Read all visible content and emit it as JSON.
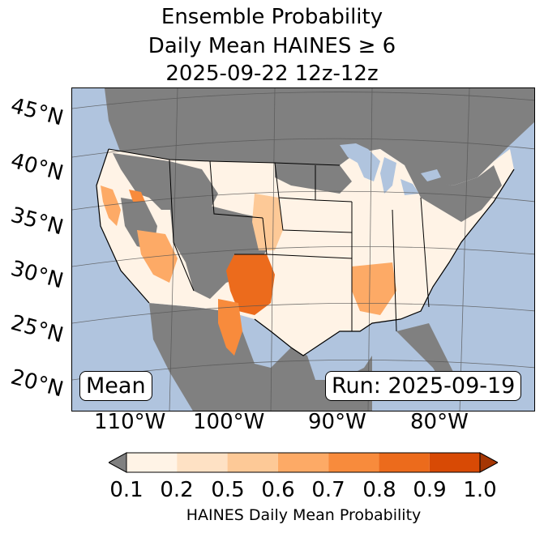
{
  "title": {
    "line1": "Ensemble Probability",
    "line2": "Daily Mean HAINES ≥ 6",
    "line3": "2025-09-22 12z-12z"
  },
  "map": {
    "stat_label": "Mean",
    "run_label": "Run: 2025-09-19",
    "colors": {
      "ocean": "#b0c4de",
      "land_masked": "#808080",
      "lake": "#b0c4de"
    },
    "lat_labels": [
      "45°N",
      "40°N",
      "35°N",
      "30°N",
      "25°N",
      "20°N"
    ],
    "lon_labels": [
      "110°W",
      "100°W",
      "90°W",
      "80°W"
    ]
  },
  "colorbar": {
    "label": "HAINES Daily Mean Probability",
    "ticks": [
      "0.1",
      "0.2",
      "0.5",
      "0.6",
      "0.7",
      "0.8",
      "0.9",
      "1.0"
    ],
    "under_color": "#808080",
    "bins": [
      {
        "range": "0.1-0.2",
        "color": "#fff3e6"
      },
      {
        "range": "0.2-0.5",
        "color": "#fee1c4"
      },
      {
        "range": "0.5-0.6",
        "color": "#fdc997"
      },
      {
        "range": "0.6-0.7",
        "color": "#fdaa66"
      },
      {
        "range": "0.7-0.8",
        "color": "#f88b3c"
      },
      {
        "range": "0.8-0.9",
        "color": "#ec6b1c"
      },
      {
        "range": "0.9-1.0",
        "color": "#d84a05"
      }
    ],
    "over_color": "#a53603"
  }
}
